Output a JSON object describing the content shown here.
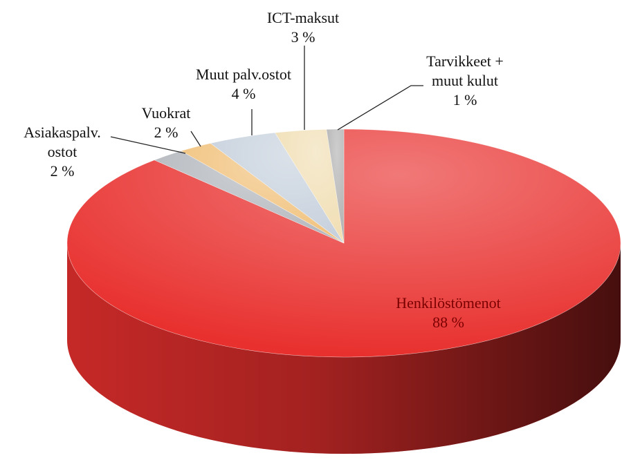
{
  "chart_data": {
    "type": "pie",
    "categories": [
      "Henkilöstömenot",
      "Asiakaspalv. ostot",
      "Vuokrat",
      "Muut palv.ostot",
      "ICT-maksut",
      "Tarvikkeet + muut kulut"
    ],
    "values": [
      88,
      2,
      2,
      4,
      3,
      1
    ],
    "value_labels": [
      "88 %",
      "2 %",
      "2 %",
      "4 %",
      "3 %",
      "1 %"
    ],
    "colors": [
      "#e8302e",
      "#b4b8be",
      "#f1c27d",
      "#c7d1dd",
      "#f1dfb5",
      "#b3b3b3"
    ]
  }
}
